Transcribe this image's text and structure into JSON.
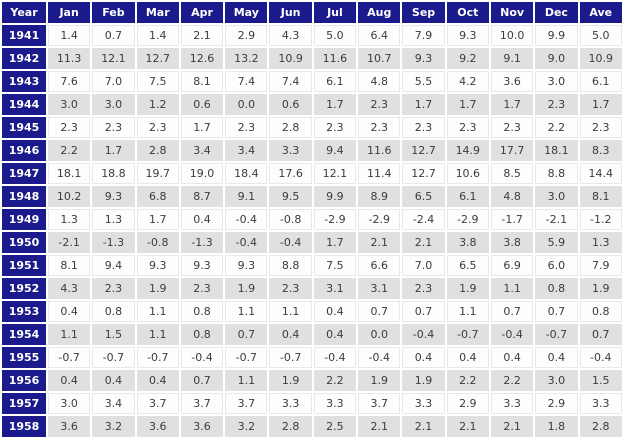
{
  "colors": {
    "header_bg": "#1A1A8C",
    "header_text": "#FFFFFF",
    "row_bg": "#FDFDFD",
    "row_alt_bg": "#E0E0E0",
    "data_text": "#3C3C3C"
  },
  "chart_data": {
    "type": "table",
    "title": "",
    "columns": [
      "Year",
      "Jan",
      "Feb",
      "Mar",
      "Apr",
      "May",
      "Jun",
      "Jul",
      "Aug",
      "Sep",
      "Oct",
      "Nov",
      "Dec",
      "Ave"
    ],
    "rows": [
      {
        "year": "1941",
        "values": [
          "1.4",
          "0.7",
          "1.4",
          "2.1",
          "2.9",
          "4.3",
          "5.0",
          "6.4",
          "7.9",
          "9.3",
          "10.0",
          "9.9",
          "5.0"
        ]
      },
      {
        "year": "1942",
        "values": [
          "11.3",
          "12.1",
          "12.7",
          "12.6",
          "13.2",
          "10.9",
          "11.6",
          "10.7",
          "9.3",
          "9.2",
          "9.1",
          "9.0",
          "10.9"
        ]
      },
      {
        "year": "1943",
        "values": [
          "7.6",
          "7.0",
          "7.5",
          "8.1",
          "7.4",
          "7.4",
          "6.1",
          "4.8",
          "5.5",
          "4.2",
          "3.6",
          "3.0",
          "6.1"
        ]
      },
      {
        "year": "1944",
        "values": [
          "3.0",
          "3.0",
          "1.2",
          "0.6",
          "0.0",
          "0.6",
          "1.7",
          "2.3",
          "1.7",
          "1.7",
          "1.7",
          "2.3",
          "1.7"
        ]
      },
      {
        "year": "1945",
        "values": [
          "2.3",
          "2.3",
          "2.3",
          "1.7",
          "2.3",
          "2.8",
          "2.3",
          "2.3",
          "2.3",
          "2.3",
          "2.3",
          "2.2",
          "2.3"
        ]
      },
      {
        "year": "1946",
        "values": [
          "2.2",
          "1.7",
          "2.8",
          "3.4",
          "3.4",
          "3.3",
          "9.4",
          "11.6",
          "12.7",
          "14.9",
          "17.7",
          "18.1",
          "8.3"
        ]
      },
      {
        "year": "1947",
        "values": [
          "18.1",
          "18.8",
          "19.7",
          "19.0",
          "18.4",
          "17.6",
          "12.1",
          "11.4",
          "12.7",
          "10.6",
          "8.5",
          "8.8",
          "14.4"
        ]
      },
      {
        "year": "1948",
        "values": [
          "10.2",
          "9.3",
          "6.8",
          "8.7",
          "9.1",
          "9.5",
          "9.9",
          "8.9",
          "6.5",
          "6.1",
          "4.8",
          "3.0",
          "8.1"
        ]
      },
      {
        "year": "1949",
        "values": [
          "1.3",
          "1.3",
          "1.7",
          "0.4",
          "-0.4",
          "-0.8",
          "-2.9",
          "-2.9",
          "-2.4",
          "-2.9",
          "-1.7",
          "-2.1",
          "-1.2"
        ]
      },
      {
        "year": "1950",
        "values": [
          "-2.1",
          "-1.3",
          "-0.8",
          "-1.3",
          "-0.4",
          "-0.4",
          "1.7",
          "2.1",
          "2.1",
          "3.8",
          "3.8",
          "5.9",
          "1.3"
        ]
      },
      {
        "year": "1951",
        "values": [
          "8.1",
          "9.4",
          "9.3",
          "9.3",
          "9.3",
          "8.8",
          "7.5",
          "6.6",
          "7.0",
          "6.5",
          "6.9",
          "6.0",
          "7.9"
        ]
      },
      {
        "year": "1952",
        "values": [
          "4.3",
          "2.3",
          "1.9",
          "2.3",
          "1.9",
          "2.3",
          "3.1",
          "3.1",
          "2.3",
          "1.9",
          "1.1",
          "0.8",
          "1.9"
        ]
      },
      {
        "year": "1953",
        "values": [
          "0.4",
          "0.8",
          "1.1",
          "0.8",
          "1.1",
          "1.1",
          "0.4",
          "0.7",
          "0.7",
          "1.1",
          "0.7",
          "0.7",
          "0.8"
        ]
      },
      {
        "year": "1954",
        "values": [
          "1.1",
          "1.5",
          "1.1",
          "0.8",
          "0.7",
          "0.4",
          "0.4",
          "0.0",
          "-0.4",
          "-0.7",
          "-0.4",
          "-0.7",
          "0.7"
        ]
      },
      {
        "year": "1955",
        "values": [
          "-0.7",
          "-0.7",
          "-0.7",
          "-0.4",
          "-0.7",
          "-0.7",
          "-0.4",
          "-0.4",
          "0.4",
          "0.4",
          "0.4",
          "0.4",
          "-0.4"
        ]
      },
      {
        "year": "1956",
        "values": [
          "0.4",
          "0.4",
          "0.4",
          "0.7",
          "1.1",
          "1.9",
          "2.2",
          "1.9",
          "1.9",
          "2.2",
          "2.2",
          "3.0",
          "1.5"
        ]
      },
      {
        "year": "1957",
        "values": [
          "3.0",
          "3.4",
          "3.7",
          "3.7",
          "3.7",
          "3.3",
          "3.3",
          "3.7",
          "3.3",
          "2.9",
          "3.3",
          "2.9",
          "3.3"
        ]
      },
      {
        "year": "1958",
        "values": [
          "3.6",
          "3.2",
          "3.6",
          "3.6",
          "3.2",
          "2.8",
          "2.5",
          "2.1",
          "2.1",
          "2.1",
          "2.1",
          "1.8",
          "2.8"
        ]
      }
    ]
  }
}
